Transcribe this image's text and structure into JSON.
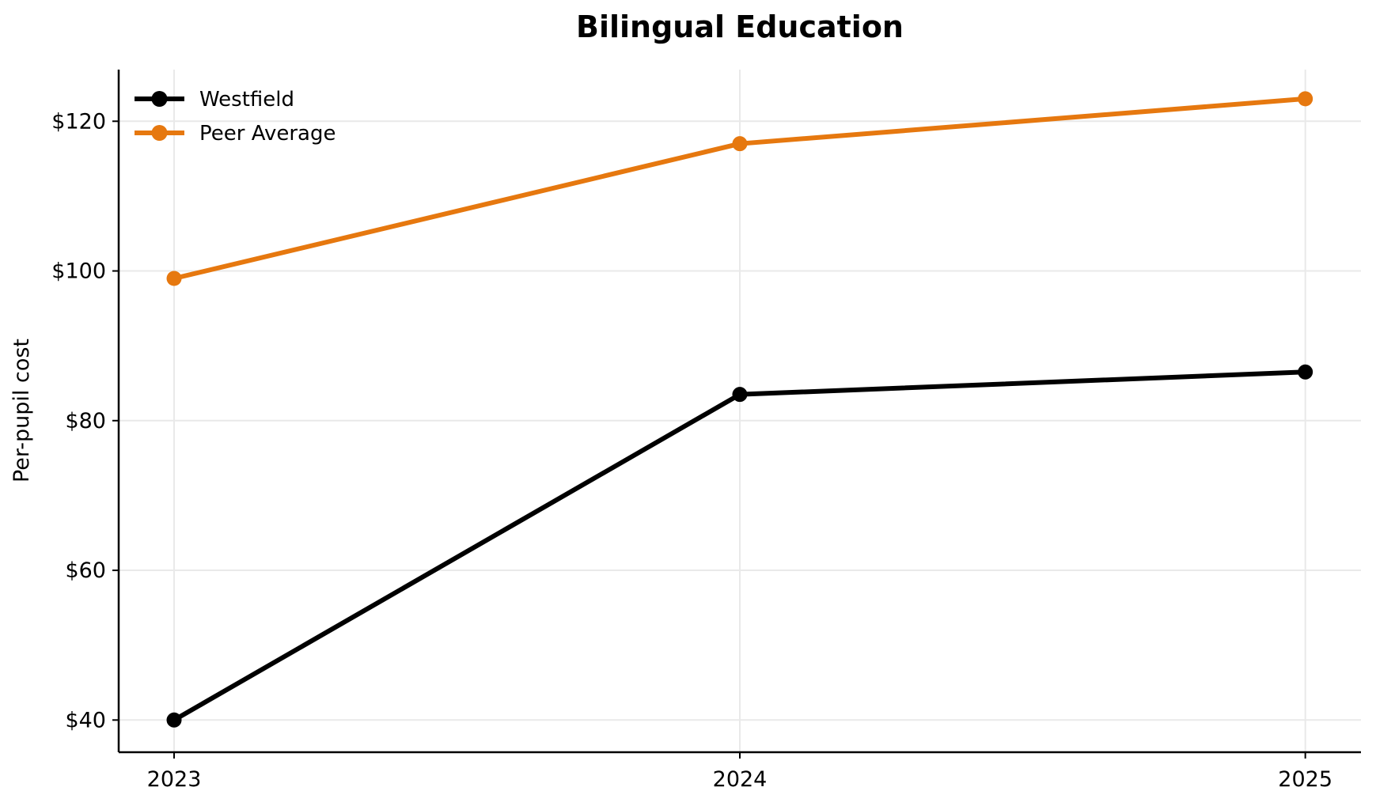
{
  "chart_data": {
    "type": "line",
    "title": "Bilingual Education",
    "xlabel": "",
    "ylabel": "Per-pupil cost",
    "categories": [
      "2023",
      "2024",
      "2025"
    ],
    "series": [
      {
        "name": "Westfield",
        "color": "#000000",
        "values": [
          40.0,
          83.5,
          86.5
        ]
      },
      {
        "name": "Peer Average",
        "color": "#E6780F",
        "values": [
          99.0,
          117.0,
          123.0
        ]
      }
    ],
    "yticks": [
      {
        "value": 40,
        "label": "$40"
      },
      {
        "value": 60,
        "label": "$60"
      },
      {
        "value": 80,
        "label": "$80"
      },
      {
        "value": 100,
        "label": "$100"
      },
      {
        "value": 120,
        "label": "$120"
      }
    ],
    "ylim": [
      35.7,
      126.9
    ],
    "grid": true,
    "grid_color": "#E9E9E9",
    "axis_color": "#000000",
    "background": "#FFFFFF",
    "legend": {
      "position": "upper-left",
      "frame": false
    }
  }
}
